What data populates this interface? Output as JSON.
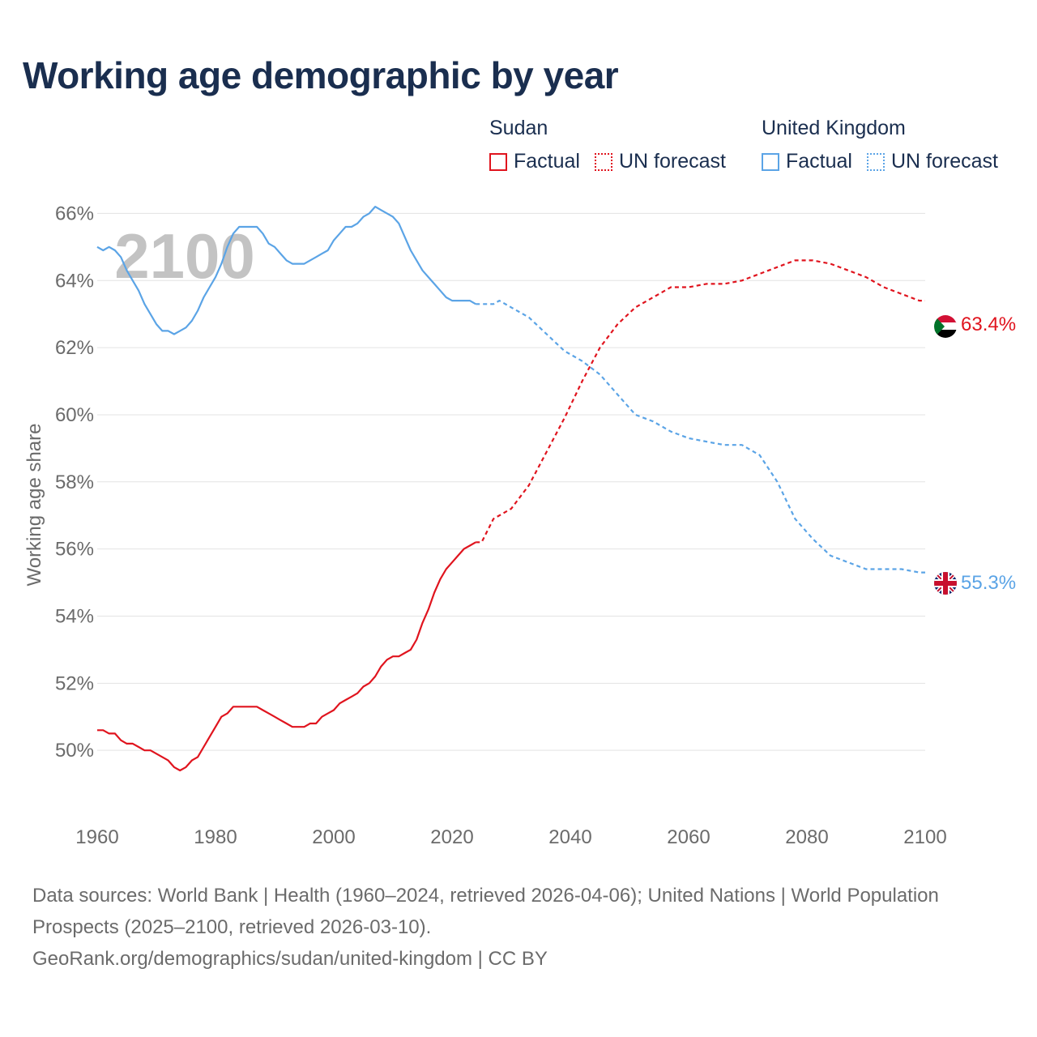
{
  "title": "Working age demographic by year",
  "legend": [
    {
      "country": "Sudan",
      "color": "#e0141e",
      "factual_label": "Factual",
      "forecast_label": "UN forecast"
    },
    {
      "country": "United Kingdom",
      "color": "#5ba4e6",
      "factual_label": "Factual",
      "forecast_label": "UN forecast"
    }
  ],
  "year_overlay": "2100",
  "footer": {
    "sources": "Data sources: World Bank | Health (1960–2024, retrieved 2026-04-06); United Nations | World Population Prospects (2025–2100, retrieved 2026-03-10).",
    "url": "GeoRank.org/demographics/sudan/united-kingdom | CC BY"
  },
  "chart_data": {
    "type": "line",
    "title": "Working age demographic by year",
    "xlabel": "",
    "ylabel": "Working age share",
    "xlim": [
      1960,
      2100
    ],
    "ylim": [
      48,
      67
    ],
    "xticks": [
      1960,
      1980,
      2000,
      2020,
      2040,
      2060,
      2080,
      2100
    ],
    "xtick_labels": [
      "1960",
      "1980",
      "2000",
      "2020",
      "2040",
      "2060",
      "2080",
      "2100"
    ],
    "yticks": [
      50,
      52,
      54,
      56,
      58,
      60,
      62,
      64,
      66
    ],
    "ytick_labels": [
      "50%",
      "52%",
      "54%",
      "56%",
      "58%",
      "60%",
      "62%",
      "64%",
      "66%"
    ],
    "grid": true,
    "series": [
      {
        "name": "Sudan",
        "color": "#e0141e",
        "end_label": "63.4%",
        "flag": "sudan-flag",
        "factual": {
          "x": [
            1960,
            1961,
            1962,
            1963,
            1964,
            1965,
            1966,
            1967,
            1968,
            1969,
            1970,
            1971,
            1972,
            1973,
            1974,
            1975,
            1976,
            1977,
            1978,
            1979,
            1980,
            1981,
            1982,
            1983,
            1984,
            1985,
            1986,
            1987,
            1988,
            1989,
            1990,
            1991,
            1992,
            1993,
            1994,
            1995,
            1996,
            1997,
            1998,
            1999,
            2000,
            2001,
            2002,
            2003,
            2004,
            2005,
            2006,
            2007,
            2008,
            2009,
            2010,
            2011,
            2012,
            2013,
            2014,
            2015,
            2016,
            2017,
            2018,
            2019,
            2020,
            2021,
            2022,
            2023,
            2024
          ],
          "y": [
            50.6,
            50.6,
            50.5,
            50.5,
            50.3,
            50.2,
            50.2,
            50.1,
            50.0,
            50.0,
            49.9,
            49.8,
            49.7,
            49.5,
            49.4,
            49.5,
            49.7,
            49.8,
            50.1,
            50.4,
            50.7,
            51.0,
            51.1,
            51.3,
            51.3,
            51.3,
            51.3,
            51.3,
            51.2,
            51.1,
            51.0,
            50.9,
            50.8,
            50.7,
            50.7,
            50.7,
            50.8,
            50.8,
            51.0,
            51.1,
            51.2,
            51.4,
            51.5,
            51.6,
            51.7,
            51.9,
            52.0,
            52.2,
            52.5,
            52.7,
            52.8,
            52.8,
            52.9,
            53.0,
            53.3,
            53.8,
            54.2,
            54.7,
            55.1,
            55.4,
            55.6,
            55.8,
            56.0,
            56.1,
            56.2
          ]
        },
        "forecast": {
          "x": [
            2024,
            2025,
            2027,
            2030,
            2033,
            2036,
            2039,
            2042,
            2045,
            2048,
            2051,
            2054,
            2057,
            2060,
            2063,
            2066,
            2069,
            2072,
            2075,
            2078,
            2081,
            2084,
            2087,
            2090,
            2093,
            2096,
            2099,
            2100
          ],
          "y": [
            56.2,
            56.2,
            56.9,
            57.2,
            57.9,
            58.9,
            59.9,
            61.0,
            62.0,
            62.7,
            63.2,
            63.5,
            63.8,
            63.8,
            63.9,
            63.9,
            64.0,
            64.2,
            64.4,
            64.6,
            64.6,
            64.5,
            64.3,
            64.1,
            63.8,
            63.6,
            63.4,
            63.4
          ]
        }
      },
      {
        "name": "United Kingdom",
        "color": "#5ba4e6",
        "end_label": "55.3%",
        "flag": "united-kingdom-flag",
        "factual": {
          "x": [
            1960,
            1961,
            1962,
            1963,
            1964,
            1965,
            1966,
            1967,
            1968,
            1969,
            1970,
            1971,
            1972,
            1973,
            1974,
            1975,
            1976,
            1977,
            1978,
            1979,
            1980,
            1981,
            1982,
            1983,
            1984,
            1985,
            1986,
            1987,
            1988,
            1989,
            1990,
            1991,
            1992,
            1993,
            1994,
            1995,
            1996,
            1997,
            1998,
            1999,
            2000,
            2001,
            2002,
            2003,
            2004,
            2005,
            2006,
            2007,
            2008,
            2009,
            2010,
            2011,
            2012,
            2013,
            2014,
            2015,
            2016,
            2017,
            2018,
            2019,
            2020,
            2021,
            2022,
            2023,
            2024
          ],
          "y": [
            65.0,
            64.9,
            65.0,
            64.9,
            64.7,
            64.3,
            64.0,
            63.7,
            63.3,
            63.0,
            62.7,
            62.5,
            62.5,
            62.4,
            62.5,
            62.6,
            62.8,
            63.1,
            63.5,
            63.8,
            64.1,
            64.5,
            65.0,
            65.4,
            65.6,
            65.6,
            65.6,
            65.6,
            65.4,
            65.1,
            65.0,
            64.8,
            64.6,
            64.5,
            64.5,
            64.5,
            64.6,
            64.7,
            64.8,
            64.9,
            65.2,
            65.4,
            65.6,
            65.6,
            65.7,
            65.9,
            66.0,
            66.2,
            66.1,
            66.0,
            65.9,
            65.7,
            65.3,
            64.9,
            64.6,
            64.3,
            64.1,
            63.9,
            63.7,
            63.5,
            63.4,
            63.4,
            63.4,
            63.4,
            63.3
          ]
        },
        "forecast": {
          "x": [
            2024,
            2027,
            2028,
            2030,
            2033,
            2036,
            2039,
            2042,
            2045,
            2048,
            2051,
            2054,
            2057,
            2060,
            2063,
            2066,
            2069,
            2072,
            2075,
            2078,
            2081,
            2084,
            2087,
            2090,
            2093,
            2096,
            2099,
            2100
          ],
          "y": [
            63.3,
            63.3,
            63.4,
            63.2,
            62.9,
            62.4,
            61.9,
            61.6,
            61.2,
            60.6,
            60.0,
            59.8,
            59.5,
            59.3,
            59.2,
            59.1,
            59.1,
            58.8,
            58.0,
            56.9,
            56.3,
            55.8,
            55.6,
            55.4,
            55.4,
            55.4,
            55.3,
            55.3
          ]
        }
      }
    ]
  }
}
